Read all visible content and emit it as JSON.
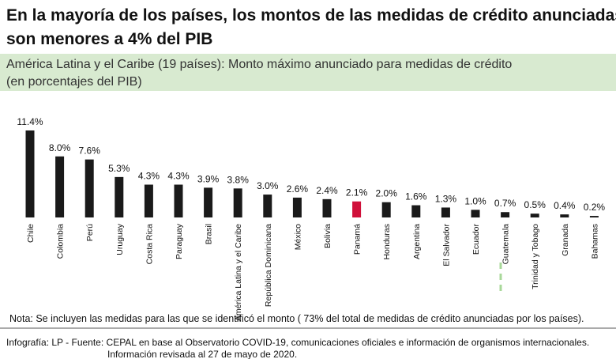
{
  "chart_data": {
    "type": "bar",
    "title": [
      "En la mayoría de los países, los montos de las medidas de crédito anunciadas",
      "son menores a 4% del PIB"
    ],
    "subtitle": [
      "América Latina y  el Caribe (19 países): Monto máximo anunciado para medidas de crédito",
      "(en porcentajes del PIB)"
    ],
    "categories": [
      "Chile",
      "Colombia",
      "Perú",
      "Uruguay",
      "Costa Rica",
      "Paraguay",
      "Brasil",
      "América Latina y el Caribe",
      "República Dominicana",
      "México",
      "Bolivia",
      "Panamá",
      "Honduras",
      "Argentina",
      "El Salvador",
      "Ecuador",
      "Guatemala",
      "Trinidad y Tobago",
      "Granada",
      "Bahamas"
    ],
    "values": [
      11.4,
      8.0,
      7.6,
      5.3,
      4.3,
      4.3,
      3.9,
      3.8,
      3.0,
      2.6,
      2.4,
      2.1,
      2.0,
      1.6,
      1.3,
      1.0,
      0.7,
      0.5,
      0.4,
      0.2
    ],
    "value_labels": [
      "11.4%",
      "8.0%",
      "7.6%",
      "5.3%",
      "4.3%",
      "4.3%",
      "3.9%",
      "3.8%",
      "3.0%",
      "2.6%",
      "2.4%",
      "2.1%",
      "2.0%",
      "1.6%",
      "1.3%",
      "1.0%",
      "0.7%",
      "0.5%",
      "0.4%",
      "0.2%"
    ],
    "colors": [
      "#1a1a1a",
      "#1a1a1a",
      "#1a1a1a",
      "#1a1a1a",
      "#1a1a1a",
      "#1a1a1a",
      "#1a1a1a",
      "#1a1a1a",
      "#1a1a1a",
      "#1a1a1a",
      "#1a1a1a",
      "#d0103a",
      "#1a1a1a",
      "#1a1a1a",
      "#1a1a1a",
      "#1a1a1a",
      "#1a1a1a",
      "#1a1a1a",
      "#1a1a1a",
      "#1a1a1a"
    ],
    "note": "Nota:  Se incluyen las medidas para las que se identificó el monto ( 73% del total de medidas de crédito anunciadas por los países).",
    "source": [
      "Infografía: LP - Fuente: CEPAL en base al Observatorio COVID-19, comunicaciones oficiales e información  de organismos internacionales.",
      "Información  revisada al 27 de mayo de 2020."
    ]
  }
}
